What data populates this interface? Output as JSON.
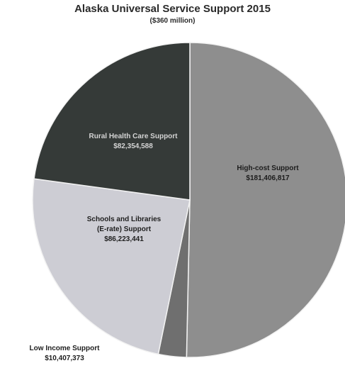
{
  "chart_data": {
    "type": "pie",
    "title": "Alaska Universal Service Support 2015",
    "subtitle": "($360 million)",
    "slices": [
      {
        "name": "High-cost Support",
        "label_lines": [
          "High-cost Support",
          "$181,406,817"
        ],
        "value": 181406817,
        "color": "#8e8e8e",
        "label_color": "#1c1c1c"
      },
      {
        "name": "Low Income Support",
        "label_lines": [
          "Low Income Support",
          "$10,407,373"
        ],
        "value": 10407373,
        "color": "#6f6f6f",
        "label_color": "#1e1e1e"
      },
      {
        "name": "Schools and Libraries (E-rate) Support",
        "label_lines": [
          "Schools and Libraries",
          "(E-rate) Support",
          "$86,223,441"
        ],
        "value": 86223441,
        "color": "#cdcdd4",
        "label_color": "#1e1e1e"
      },
      {
        "name": "Rural Health Care Support",
        "label_lines": [
          "Rural Health Care Support",
          "$82,354,588"
        ],
        "value": 82354588,
        "color": "#353a38",
        "label_color": "#d4d4d4"
      }
    ]
  }
}
